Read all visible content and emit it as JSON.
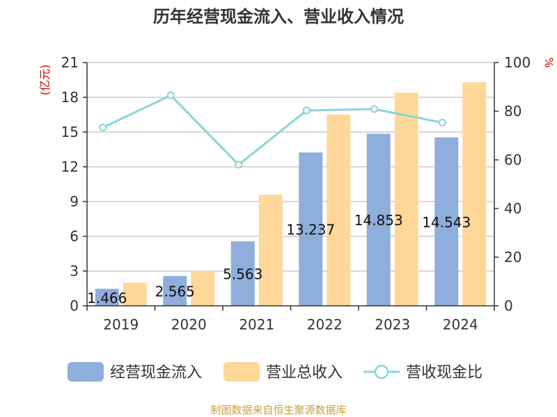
{
  "chart_data": {
    "type": "bar",
    "title": "历年经营现金流入、营业收入情况",
    "categories": [
      "2019",
      "2020",
      "2021",
      "2022",
      "2023",
      "2024"
    ],
    "series": [
      {
        "name": "经营现金流入",
        "type": "bar",
        "axis": "left",
        "color": "#8eaedb",
        "values": [
          1.466,
          2.565,
          5.563,
          13.237,
          14.853,
          14.543
        ],
        "labels": [
          "1.466",
          "2.565",
          "5.563",
          "13.237",
          "14.853",
          "14.543"
        ]
      },
      {
        "name": "营业总收入",
        "type": "bar",
        "axis": "left",
        "color": "#ffd799",
        "values": [
          2.0,
          3.0,
          9.6,
          16.5,
          18.4,
          19.3
        ]
      },
      {
        "name": "营收现金比",
        "type": "line",
        "axis": "right",
        "color": "#88d4d8",
        "values": [
          73.3,
          86.5,
          58.0,
          80.3,
          80.9,
          75.3
        ]
      }
    ],
    "y_left": {
      "unit": "(亿元)",
      "min": 0,
      "max": 21,
      "ticks": [
        0,
        3,
        6,
        9,
        12,
        15,
        18,
        21
      ]
    },
    "y_right": {
      "unit": "%",
      "min": 0,
      "max": 100,
      "ticks": [
        0,
        20,
        40,
        60,
        80,
        100
      ]
    },
    "grid": true,
    "legend_position": "bottom"
  },
  "source": "制图数据来自恒生聚源数据库"
}
